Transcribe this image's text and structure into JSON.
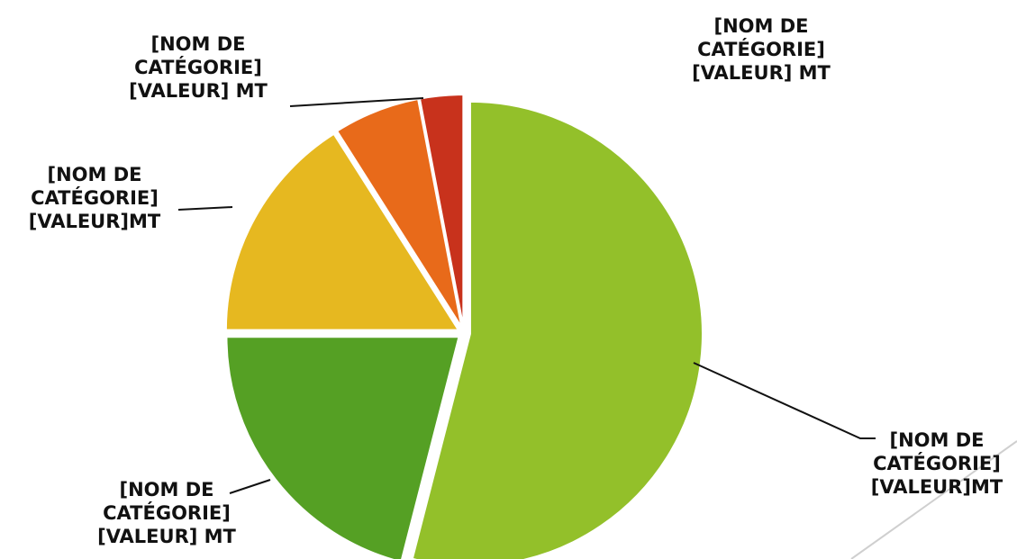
{
  "chart_data": {
    "type": "pie",
    "categories": [
      "[NOM DE CATÉGORIE]",
      "[NOM DE CATÉGORIE]",
      "[NOM DE CATÉGORIE]",
      "[NOM DE CATÉGORIE]",
      "[NOM DE CATÉGORIE]"
    ],
    "values": [
      54,
      21,
      16,
      6,
      3
    ],
    "value_labels": [
      "[VALEUR]MT",
      "[VALEUR] MT",
      "[VALEUR]MT",
      "[VALEUR] MT",
      "[VALEUR] MT"
    ],
    "colors": [
      "#93c02a",
      "#55a024",
      "#e6b820",
      "#e86a1a",
      "#c8321c"
    ]
  }
}
